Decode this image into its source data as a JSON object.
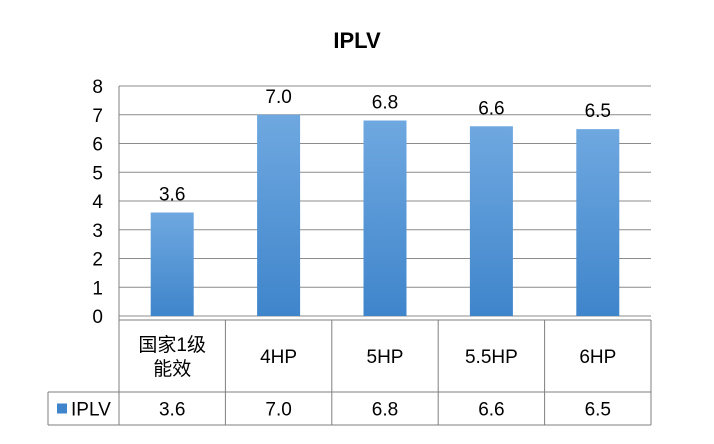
{
  "chart_data": {
    "type": "bar",
    "title": "IPLV",
    "categories": [
      "国家1级能效",
      "4HP",
      "5HP",
      "5.5HP",
      "6HP"
    ],
    "category_lines": [
      [
        "国家1级",
        "能效"
      ],
      [
        "4HP"
      ],
      [
        "5HP"
      ],
      [
        "5.5HP"
      ],
      [
        "6HP"
      ]
    ],
    "series": [
      {
        "name": "IPLV",
        "values": [
          3.6,
          7.0,
          6.8,
          6.6,
          6.5
        ],
        "labels": [
          "3.6",
          "7.0",
          "6.8",
          "6.6",
          "6.5"
        ]
      }
    ],
    "ylim": [
      0,
      8
    ],
    "yticks": [
      "0",
      "1",
      "2",
      "3",
      "4",
      "5",
      "6",
      "7",
      "8"
    ],
    "grid": true,
    "legend": "data-table",
    "colors": {
      "bar_top": "#6fa8e0",
      "bar_bottom": "#3f85cb",
      "grid": "#8c8c8c",
      "axis": "#7f7f7f"
    }
  }
}
